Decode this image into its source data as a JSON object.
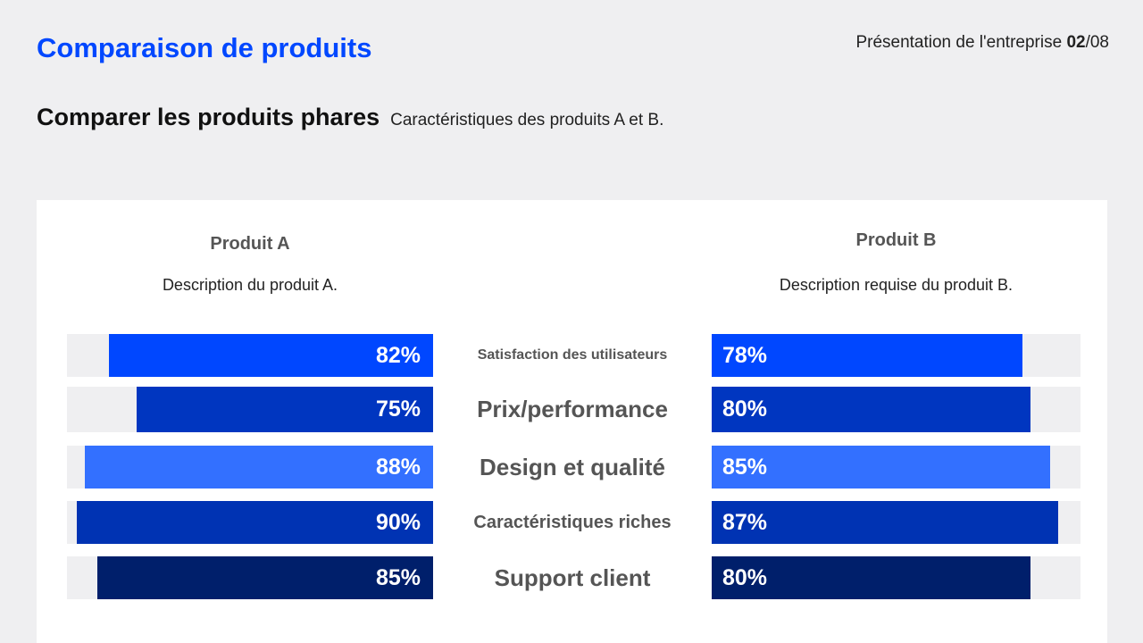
{
  "header": {
    "title": "Comparaison de produits",
    "pager_prefix": "Présentation de l'entreprise ",
    "pager_current": "02",
    "pager_total": "/08"
  },
  "subtitle": "Comparer les produits phares",
  "subtitle_desc": "Caractéristiques des produits A et B.",
  "chart_data": {
    "type": "bar",
    "orientation": "horizontal-butterfly",
    "categories": [
      "Satisfaction des utilisateurs",
      "Prix/performance",
      "Design et qualité",
      "Caractéristiques riches",
      "Support client"
    ],
    "series": [
      {
        "name": "Produit A",
        "description": "Description du produit A.",
        "values": [
          82,
          75,
          88,
          90,
          85
        ],
        "labels": [
          "82%",
          "75%",
          "88%",
          "90%",
          "85%"
        ]
      },
      {
        "name": "Produit B",
        "description": "Description requise du produit B.",
        "values": [
          78,
          80,
          85,
          87,
          80
        ],
        "labels": [
          "78%",
          "80%",
          "85%",
          "87%",
          "80%"
        ]
      }
    ],
    "unit": "%",
    "xlim": [
      0,
      100
    ],
    "colors": [
      "#0047ff",
      "#0036c0",
      "#3370ff",
      "#0033b3",
      "#001f6b"
    ],
    "track_color": "#efeff1"
  }
}
